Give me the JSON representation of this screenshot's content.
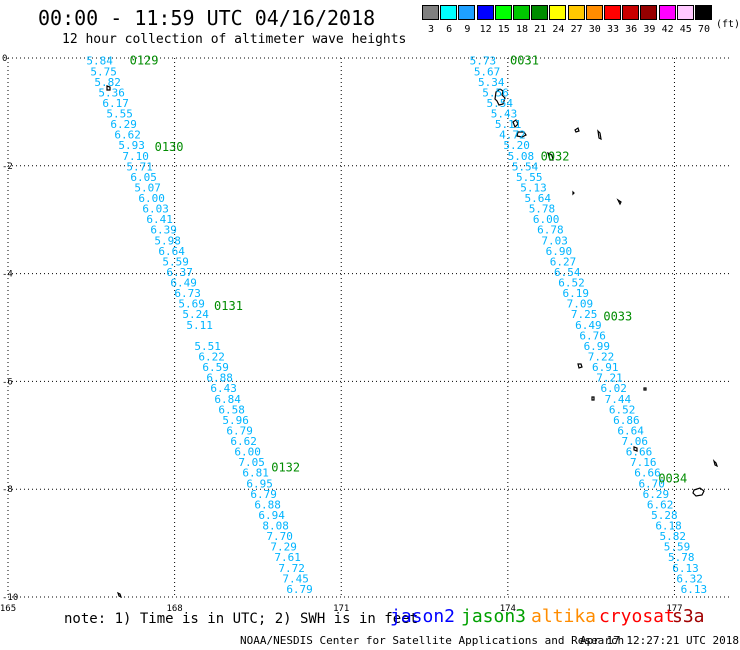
{
  "title": "00:00 - 11:59 UTC 04/16/2018",
  "subtitle": "12 hour collection of altimeter wave heights",
  "legend": {
    "unit": "(ft)",
    "items": [
      {
        "label": "3",
        "color": "#808080"
      },
      {
        "label": "6",
        "color": "#00ffff"
      },
      {
        "label": "9",
        "color": "#1ea0ff"
      },
      {
        "label": "12",
        "color": "#0000ff"
      },
      {
        "label": "15",
        "color": "#00ff00"
      },
      {
        "label": "18",
        "color": "#00c800"
      },
      {
        "label": "21",
        "color": "#008c00"
      },
      {
        "label": "24",
        "color": "#ffff00"
      },
      {
        "label": "27",
        "color": "#ffc800"
      },
      {
        "label": "30",
        "color": "#ff8c00"
      },
      {
        "label": "33",
        "color": "#ff0000"
      },
      {
        "label": "36",
        "color": "#c80000"
      },
      {
        "label": "39",
        "color": "#960000"
      },
      {
        "label": "42",
        "color": "#ff00ff"
      },
      {
        "label": "45",
        "color": "#ffc8ff"
      },
      {
        "label": "70",
        "color": "#000000"
      }
    ]
  },
  "note": "note: 1) Time is in UTC; 2) SWH is in feet",
  "satellites": [
    {
      "name": "jason2",
      "color": "#0000ff"
    },
    {
      "name": "jason3",
      "color": "#00a000"
    },
    {
      "name": "altika",
      "color": "#ff8c00"
    },
    {
      "name": "cryosat",
      "color": "#ff0000"
    },
    {
      "name": "s3a",
      "color": "#a00000"
    }
  ],
  "credit": "NOAA/NESDIS Center for Satellite Applications and Research",
  "timestamp": "Apr 17 12:27:21 UTC 2018",
  "colors": {
    "swh_text": "#00b4ff",
    "time_text": "#008c00",
    "grid": "#000000"
  },
  "chart_data": {
    "type": "scatter",
    "xlim": [
      165,
      178
    ],
    "ylim": [
      -10,
      0
    ],
    "x_ticks": [
      {
        "v": 165,
        "t": "165"
      },
      {
        "v": 168,
        "t": "168"
      },
      {
        "v": 171,
        "t": "171"
      },
      {
        "v": 174,
        "t": "174"
      },
      {
        "v": 177,
        "t": "177"
      }
    ],
    "y_ticks": [
      {
        "v": 0,
        "t": "0"
      },
      {
        "v": -2,
        "t": "-2"
      },
      {
        "v": -4,
        "t": "-4"
      },
      {
        "v": -6,
        "t": "-6"
      },
      {
        "v": -8,
        "t": "-8"
      },
      {
        "v": -10,
        "t": "-10"
      }
    ],
    "grid": true,
    "tracks": [
      {
        "start": [
          166.65,
          -0.05
        ],
        "end": [
          170.25,
          -9.85
        ],
        "swh": [
          "5.84",
          "5.75",
          "5.82",
          "5.36",
          "6.17",
          "5.55",
          "6.29",
          "6.62",
          "5.93",
          "7.10",
          "5.71",
          "6.05",
          "5.07",
          "6.00",
          "6.03",
          "6.41",
          "6.39",
          "5.98",
          "6.64",
          "5.59",
          "6.37",
          "6.49",
          "6.73",
          "5.69",
          "5.24",
          "5.11",
          "",
          "5.51",
          "6.22",
          "6.59",
          "6.88",
          "6.43",
          "6.84",
          "6.58",
          "5.96",
          "6.79",
          "6.62",
          "6.00",
          "7.05",
          "6.81",
          "6.95",
          "6.79",
          "6.88",
          "6.94",
          "8.08",
          "7.70",
          "7.29",
          "7.61",
          "7.72",
          "7.45",
          "6.79"
        ],
        "times": [
          {
            "t": "0129",
            "lon": 167.45,
            "lat": -0.05
          },
          {
            "t": "0130",
            "lon": 167.9,
            "lat": -1.65
          },
          {
            "t": "0131",
            "lon": 168.97,
            "lat": -4.6
          },
          {
            "t": "0132",
            "lon": 170.0,
            "lat": -7.6
          }
        ]
      },
      {
        "start": [
          173.55,
          -0.05
        ],
        "end": [
          177.35,
          -9.85
        ],
        "swh": [
          "5.73",
          "5.67",
          "5.34",
          "5.56",
          "5.54",
          "5.43",
          "5.11",
          "4.72",
          "5.20",
          "5.08",
          "5.54",
          "5.55",
          "5.13",
          "5.64",
          "5.78",
          "6.00",
          "6.78",
          "7.03",
          "6.90",
          "6.27",
          "6.54",
          "6.52",
          "6.19",
          "7.09",
          "7.25",
          "6.49",
          "6.76",
          "6.99",
          "7.22",
          "6.91",
          "7.21",
          "6.02",
          "7.44",
          "6.52",
          "6.86",
          "6.64",
          "7.06",
          "6.66",
          "7.16",
          "6.66",
          "6.70",
          "6.29",
          "6.62",
          "5.28",
          "6.18",
          "5.82",
          "5.59",
          "5.78",
          "6.13",
          "6.32",
          "6.13"
        ],
        "times": [
          {
            "t": "0031",
            "lon": 174.3,
            "lat": -0.05
          },
          {
            "t": "0032",
            "lon": 174.85,
            "lat": -1.83
          },
          {
            "t": "0033",
            "lon": 175.98,
            "lat": -4.8
          },
          {
            "t": "0034",
            "lon": 176.97,
            "lat": -7.8
          }
        ]
      }
    ]
  }
}
